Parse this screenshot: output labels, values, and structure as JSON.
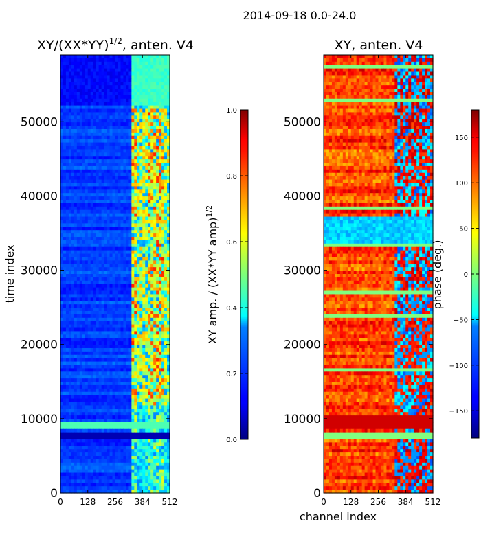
{
  "chart_data": {
    "suptitle": "2014-09-18 0.0-24.0",
    "xlabel": "channel index",
    "panels": [
      {
        "type": "heatmap",
        "title_main": "XY/(XX*YY)",
        "title_exp": "1/2",
        "title_tail": ", anten. V4",
        "ylabel": "time index",
        "xlim": [
          0,
          512
        ],
        "ylim": [
          0,
          59000
        ],
        "xticks": [
          0,
          128,
          256,
          384,
          512
        ],
        "xtick_labels": [
          "0",
          "128",
          "256",
          "384",
          "512"
        ],
        "yticks": [
          0,
          10000,
          20000,
          30000,
          40000,
          50000
        ],
        "ytick_labels": [
          "0",
          "10000",
          "20000",
          "30000",
          "40000",
          "50000"
        ],
        "colormap": "jet",
        "colorbar": {
          "label_main": "XY amp. / (XX*YY amp)",
          "label_exp": "1/2",
          "range": [
            0.0,
            1.0
          ],
          "ticks": [
            0.0,
            0.2,
            0.4,
            0.6,
            0.8,
            1.0
          ],
          "tick_labels": [
            "0.0",
            "0.2",
            "0.4",
            "0.6",
            "0.8",
            "1.0"
          ]
        }
      },
      {
        "type": "heatmap",
        "title": "XY, anten. V4",
        "xlim": [
          0,
          512
        ],
        "ylim": [
          0,
          59000
        ],
        "xticks": [
          0,
          128,
          256,
          384,
          512
        ],
        "xtick_labels": [
          "0",
          "128",
          "256",
          "384",
          "512"
        ],
        "yticks": [
          0,
          10000,
          20000,
          30000,
          40000,
          50000
        ],
        "ytick_labels": [
          "0",
          "10000",
          "20000",
          "30000",
          "40000",
          "50000"
        ],
        "colormap": "jet",
        "colorbar": {
          "label": "phase (deg.)",
          "range": [
            -180,
            180
          ],
          "ticks": [
            -150,
            -100,
            -50,
            0,
            50,
            100,
            150
          ],
          "tick_labels": [
            "−150",
            "−100",
            "−50",
            "0",
            "50",
            "100",
            "150"
          ]
        }
      }
    ]
  }
}
